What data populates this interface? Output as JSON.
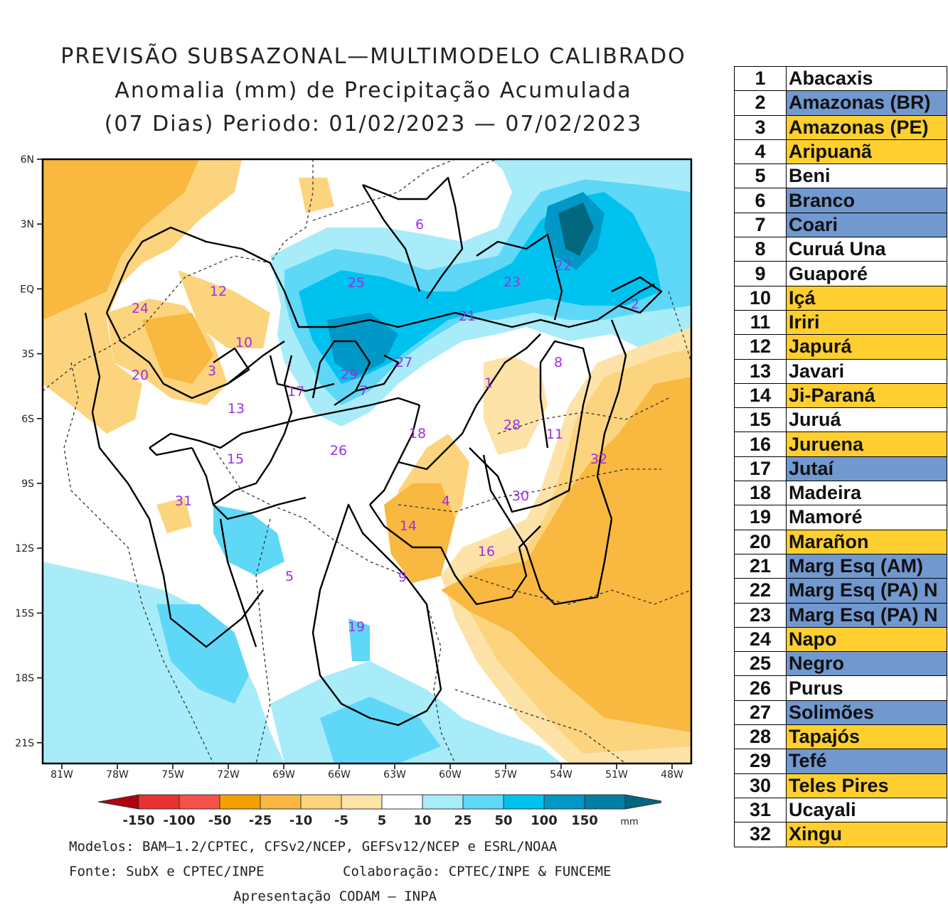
{
  "title": {
    "line1": "PREVISÃO SUBSAZONAL—MULTIMODELO CALIBRADO",
    "line2": "Anomalia (mm) de Precipitação Acumulada",
    "line3": "(07 Dias) Periodo: 01/02/2023 — 07/02/2023"
  },
  "colors": {
    "red_dark": "#b2000e",
    "red": "#e83232",
    "red_light": "#f5504a",
    "orange": "#f5a000",
    "orange_mid": "#f9b840",
    "orange_light": "#fcd47e",
    "tan": "#fde3a8",
    "white": "#ffffff",
    "cyan_light": "#a8ecfa",
    "cyan": "#5fd8f7",
    "cyan_mid": "#00c2ef",
    "blue_dark": "#0098c6",
    "blue_deeper": "#007fa6",
    "teal": "#00677f",
    "legend_blue": "#7198cf",
    "legend_yellow": "#fecf2e"
  },
  "map": {
    "lat_labels": [
      "6N",
      "3N",
      "EQ",
      "3S",
      "6S",
      "9S",
      "12S",
      "15S",
      "18S",
      "21S"
    ],
    "lon_labels": [
      "81W",
      "78W",
      "75W",
      "72W",
      "69W",
      "66W",
      "63W",
      "60W",
      "57W",
      "54W",
      "51W",
      "48W"
    ],
    "basin_labels": [
      "1",
      "2",
      "3",
      "4",
      "5",
      "6",
      "7",
      "8",
      "9",
      "10",
      "11",
      "12",
      "13",
      "14",
      "15",
      "16",
      "17",
      "18",
      "19",
      "20",
      "21",
      "22",
      "23",
      "24",
      "25",
      "26",
      "27",
      "28",
      "29",
      "30",
      "31",
      "32"
    ]
  },
  "colorbar": {
    "labels": [
      "-150",
      "-100",
      "-50",
      "-25",
      "-10",
      "-5",
      "5",
      "10",
      "25",
      "50",
      "100",
      "150"
    ],
    "unit": "mm"
  },
  "credits": {
    "models": "Modelos: BAM—1.2/CPTEC, CFSv2/NCEP, GEFSv12/NCEP e ESRL/NOAA",
    "source": "Fonte: SubX e CPTEC/INPE",
    "collab": "Colaboração: CPTEC/INPE & FUNCEME",
    "presentation": "Apresentação CODAM — INPA"
  },
  "legend": [
    {
      "num": "1",
      "name": "Abacaxis",
      "color": "white"
    },
    {
      "num": "2",
      "name": "Amazonas (BR)",
      "color": "blue"
    },
    {
      "num": "3",
      "name": "Amazonas (PE)",
      "color": "yellow"
    },
    {
      "num": "4",
      "name": "Aripuanã",
      "color": "yellow"
    },
    {
      "num": "5",
      "name": "Beni",
      "color": "white"
    },
    {
      "num": "6",
      "name": "Branco",
      "color": "blue"
    },
    {
      "num": "7",
      "name": "Coari",
      "color": "blue"
    },
    {
      "num": "8",
      "name": "Curuá Una",
      "color": "white"
    },
    {
      "num": "9",
      "name": "Guaporé",
      "color": "white"
    },
    {
      "num": "10",
      "name": "Içá",
      "color": "yellow"
    },
    {
      "num": "11",
      "name": "Iriri",
      "color": "yellow"
    },
    {
      "num": "12",
      "name": "Japurá",
      "color": "yellow"
    },
    {
      "num": "13",
      "name": "Javari",
      "color": "white"
    },
    {
      "num": "14",
      "name": "Ji-Paraná",
      "color": "yellow"
    },
    {
      "num": "15",
      "name": "Juruá",
      "color": "white"
    },
    {
      "num": "16",
      "name": "Juruena",
      "color": "yellow"
    },
    {
      "num": "17",
      "name": "Jutaí",
      "color": "blue"
    },
    {
      "num": "18",
      "name": "Madeira",
      "color": "white"
    },
    {
      "num": "19",
      "name": "Mamoré",
      "color": "white"
    },
    {
      "num": "20",
      "name": "Marañon",
      "color": "yellow"
    },
    {
      "num": "21",
      "name": "Marg Esq (AM)",
      "color": "blue"
    },
    {
      "num": "22",
      "name": "Marg Esq (PA) N",
      "color": "blue"
    },
    {
      "num": "23",
      "name": "Marg Esq (PA) N",
      "color": "blue"
    },
    {
      "num": "24",
      "name": "Napo",
      "color": "yellow"
    },
    {
      "num": "25",
      "name": "Negro",
      "color": "blue"
    },
    {
      "num": "26",
      "name": "Purus",
      "color": "white"
    },
    {
      "num": "27",
      "name": "Solimões",
      "color": "blue"
    },
    {
      "num": "28",
      "name": "Tapajós",
      "color": "yellow"
    },
    {
      "num": "29",
      "name": "Tefé",
      "color": "blue"
    },
    {
      "num": "30",
      "name": "Teles Pires",
      "color": "yellow"
    },
    {
      "num": "31",
      "name": "Ucayali",
      "color": "white"
    },
    {
      "num": "32",
      "name": "Xingu",
      "color": "yellow"
    }
  ]
}
